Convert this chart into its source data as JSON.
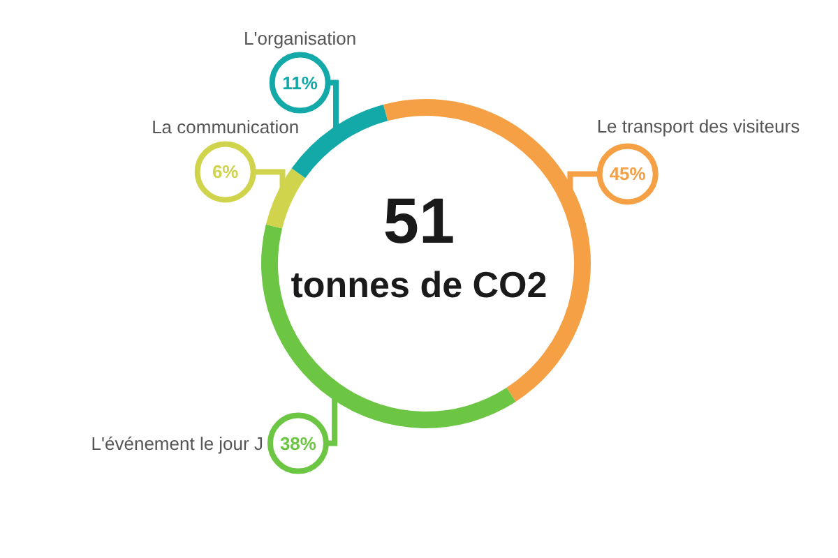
{
  "chart_data": {
    "type": "donut",
    "title": "51",
    "subtitle": "tonnes de CO2",
    "categories": [
      "Le transport des visiteurs",
      "L'événement le jour J",
      "La communication",
      "L'organisation"
    ],
    "values": [
      45,
      38,
      6,
      11
    ],
    "colors": [
      "#f5a045",
      "#6cc644",
      "#cfd44c",
      "#14a9a9"
    ],
    "value_labels": [
      "45%",
      "38%",
      "6%",
      "11%"
    ],
    "data_labels": true
  }
}
